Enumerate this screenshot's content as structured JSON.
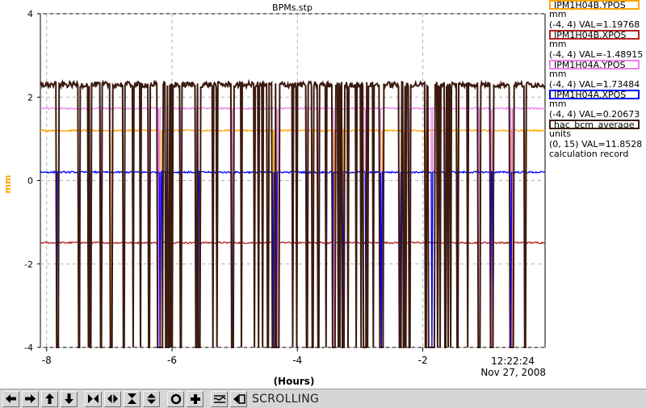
{
  "window": {
    "title": "BPMs.stp"
  },
  "chart_data": {
    "type": "line",
    "title": "BPMs.stp",
    "xlabel": "(Hours)",
    "ylabel": "mm",
    "xlim": [
      -8.1,
      -0.05
    ],
    "ylim": [
      -4,
      4
    ],
    "x_ticks": [
      -8,
      -6,
      -4,
      -2
    ],
    "x_tick_labels": [
      "-8",
      "-6",
      "-4",
      "-2"
    ],
    "y_ticks": [
      -4,
      -2,
      0,
      2,
      4
    ],
    "y_tick_labels": [
      "-4",
      "-2",
      "0",
      "2",
      "4"
    ],
    "grid": true,
    "time_label": "12:22:24",
    "date_label": "Nov 27, 2008",
    "legend_position": "right",
    "series": [
      {
        "name": "IPM1H04B.YPOS",
        "units": "mm",
        "range": "(-4, 4)",
        "val": "VAL=1.19768",
        "color": "#ffa500",
        "baseline": 1.2
      },
      {
        "name": "IPM1H04B.XPOS",
        "units": "mm",
        "range": "(-4, 4)",
        "val": "VAL=-1.48915",
        "color": "#b22222",
        "baseline": -1.49
      },
      {
        "name": "IPM1H04A.YPOS",
        "units": "mm",
        "range": "(-4, 4)",
        "val": "VAL=1.73484",
        "color": "#ee82ee",
        "baseline": 1.73
      },
      {
        "name": "IPM1H04A.XPOS",
        "units": "mm",
        "range": "(-4, 4)",
        "val": "VAL=0.20673",
        "color": "#0000ff",
        "baseline": 0.2
      },
      {
        "name": "hac_bcm_average",
        "units": "units",
        "range": "(0, 15)",
        "val": "VAL=11.8528",
        "extra": "calculation record",
        "color": "#3b1a10",
        "baseline": 2.3,
        "dropout": -4
      }
    ]
  },
  "toolbar": {
    "buttons": [
      {
        "name": "scroll-left-button",
        "icon": "arrow-left-icon"
      },
      {
        "name": "scroll-right-button",
        "icon": "arrow-right-icon"
      },
      {
        "name": "scroll-up-button",
        "icon": "arrow-up-icon"
      },
      {
        "name": "scroll-down-button",
        "icon": "arrow-down-icon"
      },
      {
        "name": "zoom-in-x-button",
        "icon": "zoom-in-x-icon"
      },
      {
        "name": "zoom-out-x-button",
        "icon": "zoom-out-x-icon"
      },
      {
        "name": "zoom-in-y-button",
        "icon": "zoom-in-y-icon"
      },
      {
        "name": "zoom-out-y-button",
        "icon": "zoom-out-y-icon"
      },
      {
        "name": "autoscale-button",
        "icon": "circle-icon"
      },
      {
        "name": "add-button",
        "icon": "plus-icon"
      },
      {
        "name": "waveform-button",
        "icon": "waveform-icon"
      },
      {
        "name": "scroll-mode-button",
        "icon": "scroll-mode-icon"
      }
    ],
    "status_label": "SCROLLING"
  }
}
